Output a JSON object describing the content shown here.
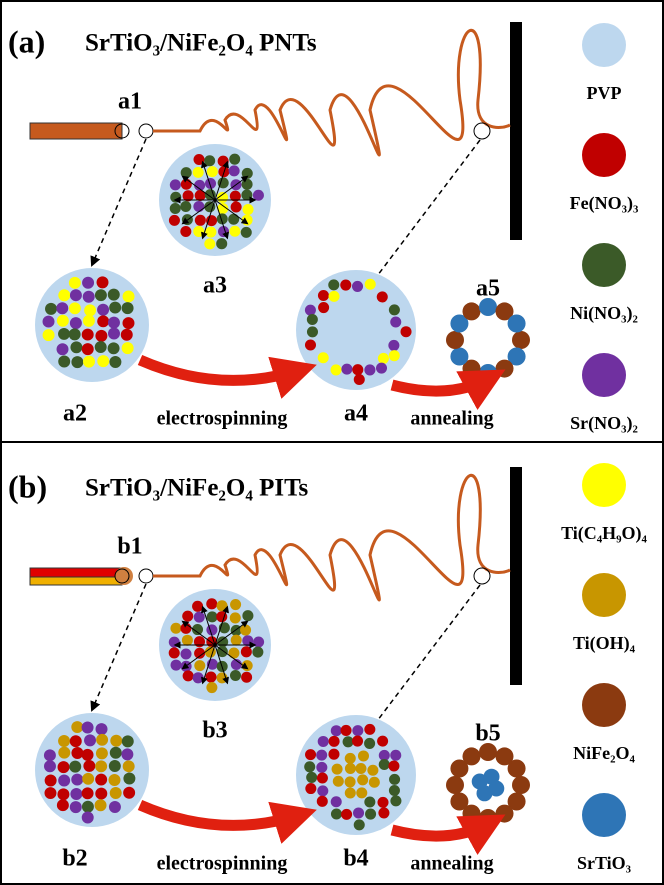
{
  "panels": [
    {
      "label": "(a)",
      "title": "SrTiO₃/NiFe₂O₄ PNTs",
      "steps": [
        "a1",
        "a2",
        "a3",
        "a4",
        "a5"
      ],
      "process": [
        "electrospinning",
        "annealing"
      ]
    },
    {
      "label": "(b)",
      "title": "SrTiO₃/NiFe₂O₄ PITs",
      "steps": [
        "b1",
        "b2",
        "b3",
        "b4",
        "b5"
      ],
      "process": [
        "electrospinning",
        "annealing"
      ]
    }
  ],
  "legend": [
    {
      "label": "PVP",
      "color": "#bdd7ee"
    },
    {
      "label": "Fe(NO₃)₃",
      "color": "#c00000"
    },
    {
      "label": "Ni(NO₃)₂",
      "color": "#3b5a28"
    },
    {
      "label": "Sr(NO₃)₂",
      "color": "#7030a0"
    },
    {
      "label": "Ti(C₄H₉O)₄",
      "color": "#ffff00"
    },
    {
      "label": "Ti(OH)₄",
      "color": "#c89600"
    },
    {
      "label": "NiFe₂O₄",
      "color": "#8b3a10"
    },
    {
      "label": "SrTiO₃",
      "color": "#2e75b6"
    }
  ]
}
